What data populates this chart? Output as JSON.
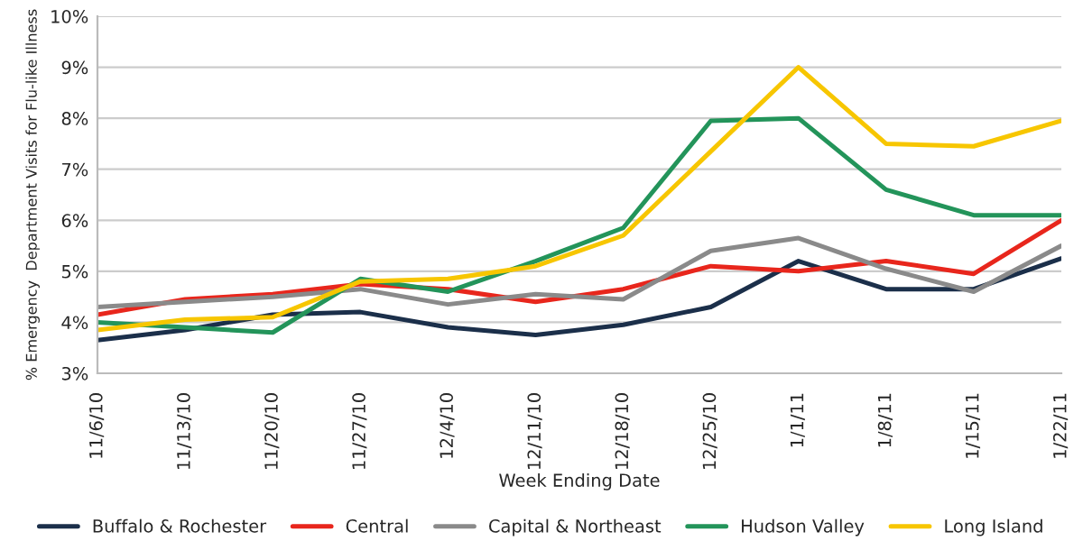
{
  "chart_data": {
    "type": "line",
    "xlabel": "Week Ending Date",
    "ylabel": "% Emergency  Department Visits for Flu-like Illness",
    "categories": [
      "11/6/10",
      "11/13/10",
      "11/20/10",
      "11/27/10",
      "12/4/10",
      "12/11/10",
      "12/18/10",
      "12/25/10",
      "1/1/11",
      "1/8/11",
      "1/15/11",
      "1/22/11"
    ],
    "series": [
      {
        "name": "Buffalo & Rochester",
        "color": "#1b2f4a",
        "values": [
          3.65,
          3.85,
          4.15,
          4.2,
          3.9,
          3.75,
          3.95,
          4.3,
          5.2,
          4.65,
          4.65,
          5.25
        ]
      },
      {
        "name": "Central",
        "color": "#e8261c",
        "values": [
          4.15,
          4.45,
          4.55,
          4.75,
          4.65,
          4.4,
          4.65,
          5.1,
          5.0,
          5.2,
          4.95,
          6.0
        ]
      },
      {
        "name": "Capital & Northeast",
        "color": "#8a8a8a",
        "values": [
          4.3,
          4.4,
          4.5,
          4.65,
          4.35,
          4.55,
          4.45,
          5.4,
          5.65,
          5.05,
          4.6,
          5.5
        ]
      },
      {
        "name": "Hudson Valley",
        "color": "#23945a",
        "values": [
          4.0,
          3.9,
          3.8,
          4.85,
          4.6,
          5.2,
          5.85,
          7.95,
          8.0,
          6.6,
          6.1,
          6.1
        ]
      },
      {
        "name": "Long Island",
        "color": "#f7c600",
        "values": [
          3.85,
          4.05,
          4.1,
          4.8,
          4.85,
          5.1,
          5.7,
          7.35,
          9.0,
          7.5,
          7.45,
          7.95
        ]
      }
    ],
    "ylim": [
      3,
      10
    ],
    "yticks": [
      {
        "value": 3,
        "label": "3%"
      },
      {
        "value": 4,
        "label": "4%"
      },
      {
        "value": 5,
        "label": "5%"
      },
      {
        "value": 6,
        "label": "6%"
      },
      {
        "value": 7,
        "label": "7%"
      },
      {
        "value": 8,
        "label": "8%"
      },
      {
        "value": 9,
        "label": "9%"
      },
      {
        "value": 10,
        "label": "10%"
      }
    ],
    "grid": "y",
    "legend": "bottom",
    "marker": "none",
    "line_style": "solid"
  }
}
